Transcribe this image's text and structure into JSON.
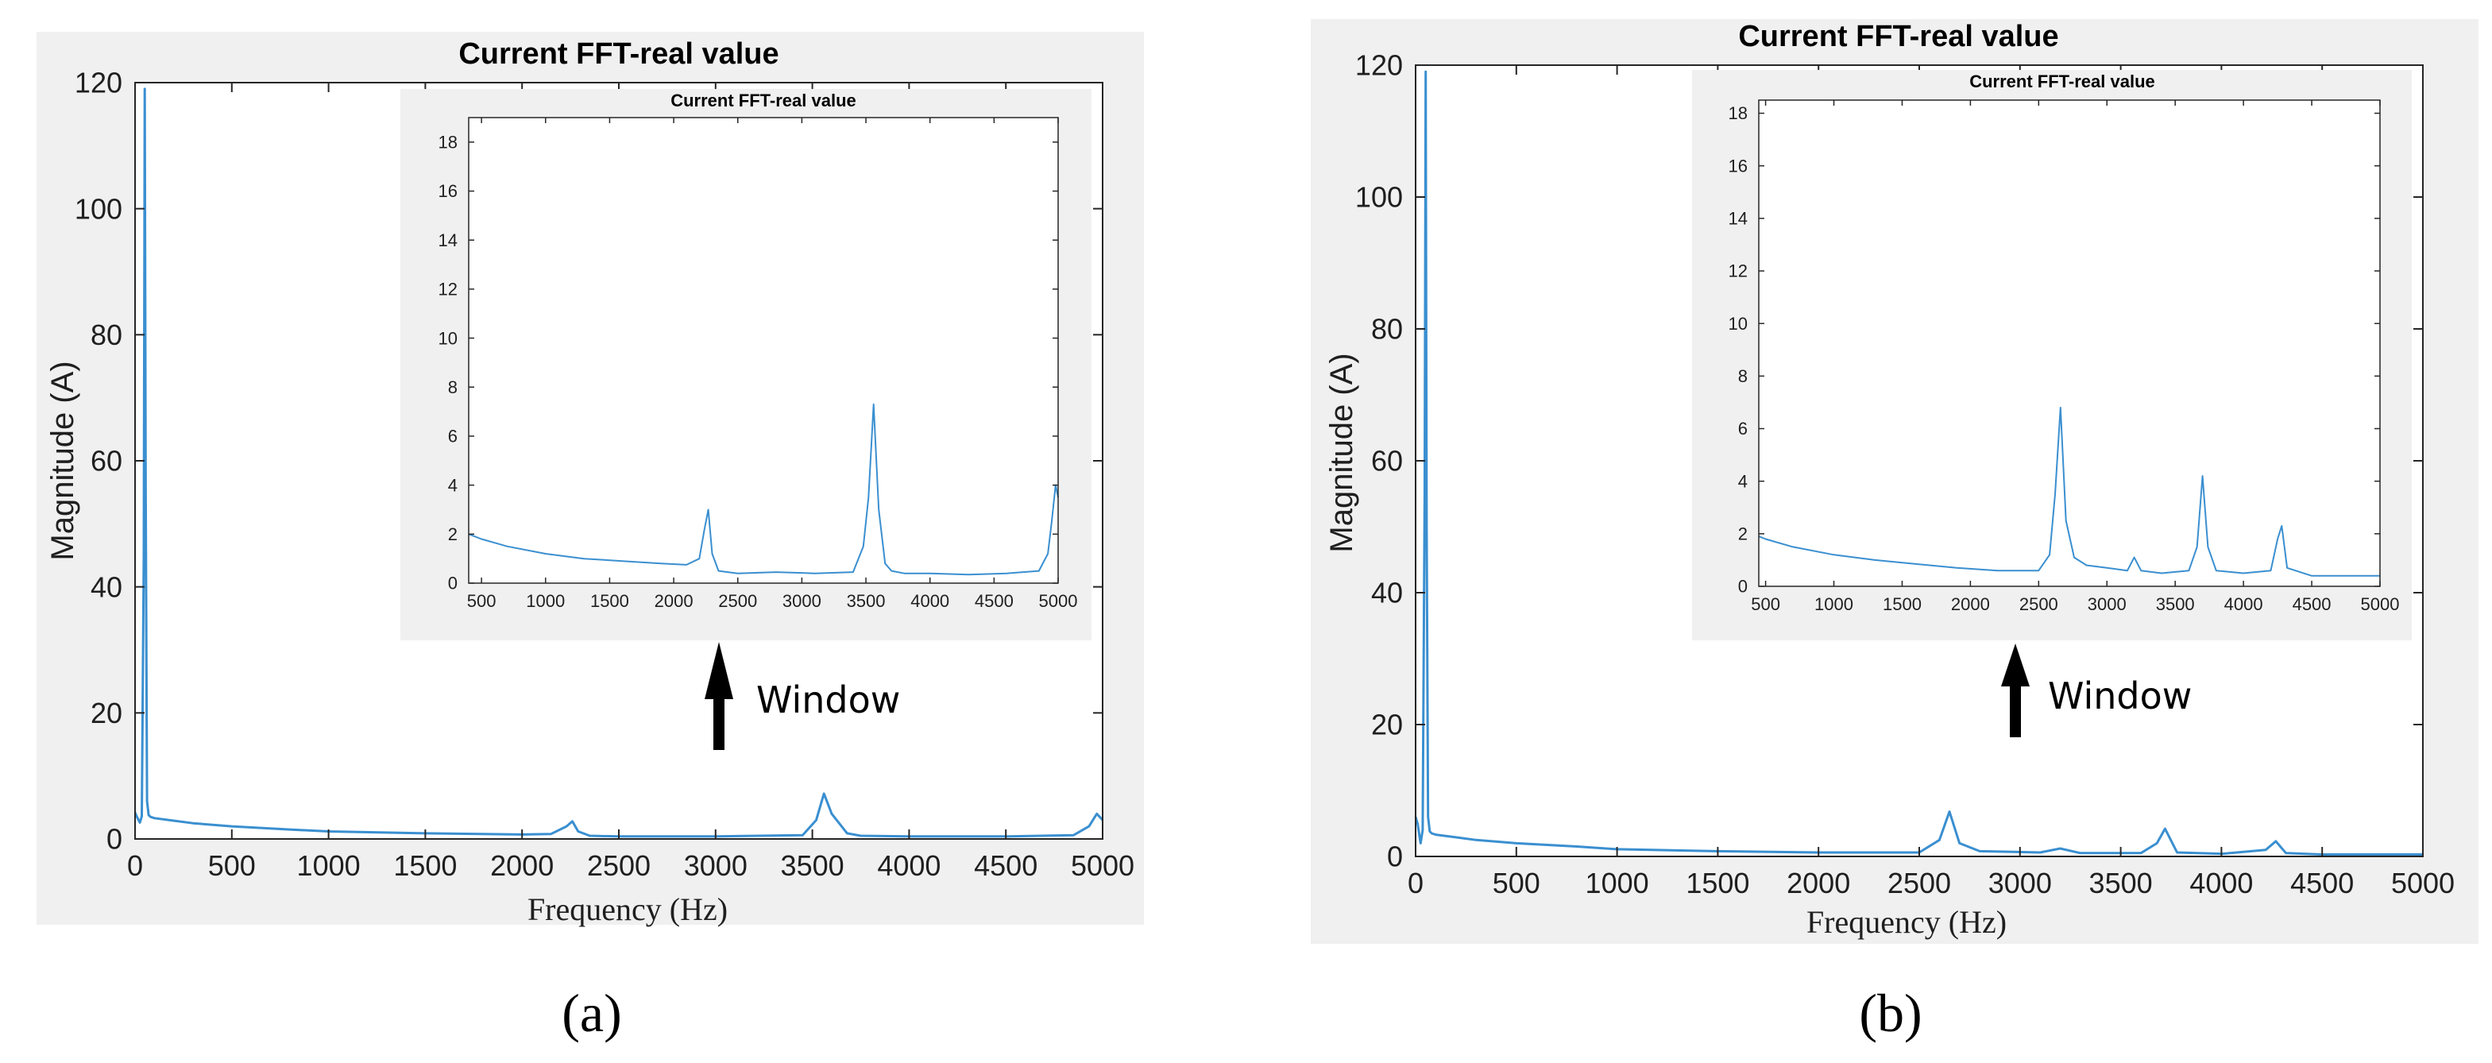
{
  "chart_data": [
    {
      "type": "line",
      "panel": "a",
      "caption": "(a)",
      "title": "Current FFT-real value",
      "xlabel": "Frequency (Hz)",
      "ylabel": "Magnitude (A)",
      "xlim": [
        0,
        5000
      ],
      "ylim": [
        0,
        120
      ],
      "xticks": [
        0,
        500,
        1000,
        1500,
        2000,
        2500,
        3000,
        3500,
        4000,
        4500,
        5000
      ],
      "yticks": [
        0,
        20,
        40,
        60,
        80,
        100,
        120
      ],
      "line_color": "#3a8fd0",
      "series": [
        {
          "x": [
            0,
            10,
            25,
            35,
            45,
            50,
            55,
            62,
            70,
            80,
            100,
            200,
            300,
            500,
            800,
            1000,
            1500,
            2000,
            2150,
            2230,
            2260,
            2290,
            2350,
            2500,
            3000,
            3450,
            3520,
            3560,
            3600,
            3680,
            3750,
            4000,
            4500,
            4850,
            4930,
            4970,
            5000
          ],
          "y": [
            4.2,
            3.5,
            2.6,
            3.6,
            45,
            119,
            55,
            6,
            3.8,
            3.5,
            3.3,
            2.9,
            2.5,
            2.0,
            1.5,
            1.2,
            0.9,
            0.7,
            0.8,
            2.0,
            2.8,
            1.2,
            0.5,
            0.4,
            0.4,
            0.6,
            3.0,
            7.2,
            4.0,
            0.9,
            0.5,
            0.4,
            0.4,
            0.6,
            2.0,
            4.0,
            3.0
          ]
        }
      ],
      "annotation": "Window",
      "inset": {
        "title": "Current FFT-real value",
        "xlim": [
          400,
          5000
        ],
        "ylim": [
          0,
          19
        ],
        "xticks": [
          500,
          1000,
          1500,
          2000,
          2500,
          3000,
          3500,
          4000,
          4500,
          5000
        ],
        "yticks": [
          0,
          2,
          4,
          6,
          8,
          10,
          12,
          14,
          16,
          18
        ],
        "series": [
          {
            "x": [
              400,
              500,
              700,
              1000,
              1300,
              1600,
              1900,
              2100,
              2200,
              2240,
              2270,
              2300,
              2350,
              2500,
              2800,
              3100,
              3400,
              3480,
              3520,
              3560,
              3600,
              3650,
              3700,
              3800,
              4000,
              4300,
              4600,
              4850,
              4920,
              4950,
              4980,
              5000
            ],
            "y": [
              2.0,
              1.8,
              1.5,
              1.2,
              1.0,
              0.9,
              0.8,
              0.75,
              1.0,
              2.2,
              3.0,
              1.2,
              0.5,
              0.4,
              0.45,
              0.4,
              0.45,
              1.5,
              3.5,
              7.3,
              3.0,
              0.8,
              0.5,
              0.4,
              0.4,
              0.35,
              0.4,
              0.5,
              1.2,
              2.5,
              4.0,
              3.5
            ]
          }
        ]
      }
    },
    {
      "type": "line",
      "panel": "b",
      "caption": "(b)",
      "title": "Current FFT-real value",
      "xlabel": "Frequency (Hz)",
      "ylabel": "Magnitude (A)",
      "xlim": [
        0,
        5000
      ],
      "ylim": [
        0,
        120
      ],
      "xticks": [
        0,
        500,
        1000,
        1500,
        2000,
        2500,
        3000,
        3500,
        4000,
        4500,
        5000
      ],
      "yticks": [
        0,
        20,
        40,
        60,
        80,
        100,
        120
      ],
      "line_color": "#3a8fd0",
      "series": [
        {
          "x": [
            0,
            10,
            25,
            35,
            45,
            50,
            55,
            62,
            70,
            80,
            100,
            200,
            300,
            500,
            800,
            1000,
            1500,
            2000,
            2500,
            2600,
            2650,
            2700,
            2800,
            3100,
            3200,
            3300,
            3600,
            3680,
            3720,
            3780,
            4000,
            4220,
            4270,
            4320,
            4500,
            5000
          ],
          "y": [
            6.0,
            5.0,
            2.0,
            4.0,
            55,
            119,
            50,
            6,
            3.8,
            3.5,
            3.3,
            2.9,
            2.5,
            2.0,
            1.5,
            1.1,
            0.8,
            0.6,
            0.6,
            2.5,
            6.8,
            2.0,
            0.8,
            0.6,
            1.2,
            0.5,
            0.5,
            2.0,
            4.2,
            0.6,
            0.4,
            1.0,
            2.3,
            0.5,
            0.3,
            0.3
          ]
        }
      ],
      "annotation": "Window",
      "inset": {
        "title": "Current FFT-real value",
        "xlim": [
          450,
          5000
        ],
        "ylim": [
          0,
          18.5
        ],
        "xticks": [
          500,
          1000,
          1500,
          2000,
          2500,
          3000,
          3500,
          4000,
          4500,
          5000
        ],
        "yticks": [
          0,
          2,
          4,
          6,
          8,
          10,
          12,
          14,
          16,
          18
        ],
        "series": [
          {
            "x": [
              450,
              500,
              700,
              1000,
              1300,
              1600,
              1900,
              2200,
              2500,
              2580,
              2620,
              2660,
              2700,
              2760,
              2850,
              3000,
              3150,
              3200,
              3250,
              3400,
              3600,
              3660,
              3700,
              3740,
              3800,
              4000,
              4200,
              4250,
              4280,
              4320,
              4500,
              5000
            ],
            "y": [
              1.9,
              1.8,
              1.5,
              1.2,
              1.0,
              0.85,
              0.7,
              0.6,
              0.6,
              1.2,
              3.5,
              6.8,
              2.5,
              1.1,
              0.8,
              0.7,
              0.6,
              1.1,
              0.6,
              0.5,
              0.6,
              1.5,
              4.2,
              1.5,
              0.6,
              0.5,
              0.6,
              1.8,
              2.3,
              0.7,
              0.4,
              0.4
            ]
          }
        ]
      }
    }
  ]
}
